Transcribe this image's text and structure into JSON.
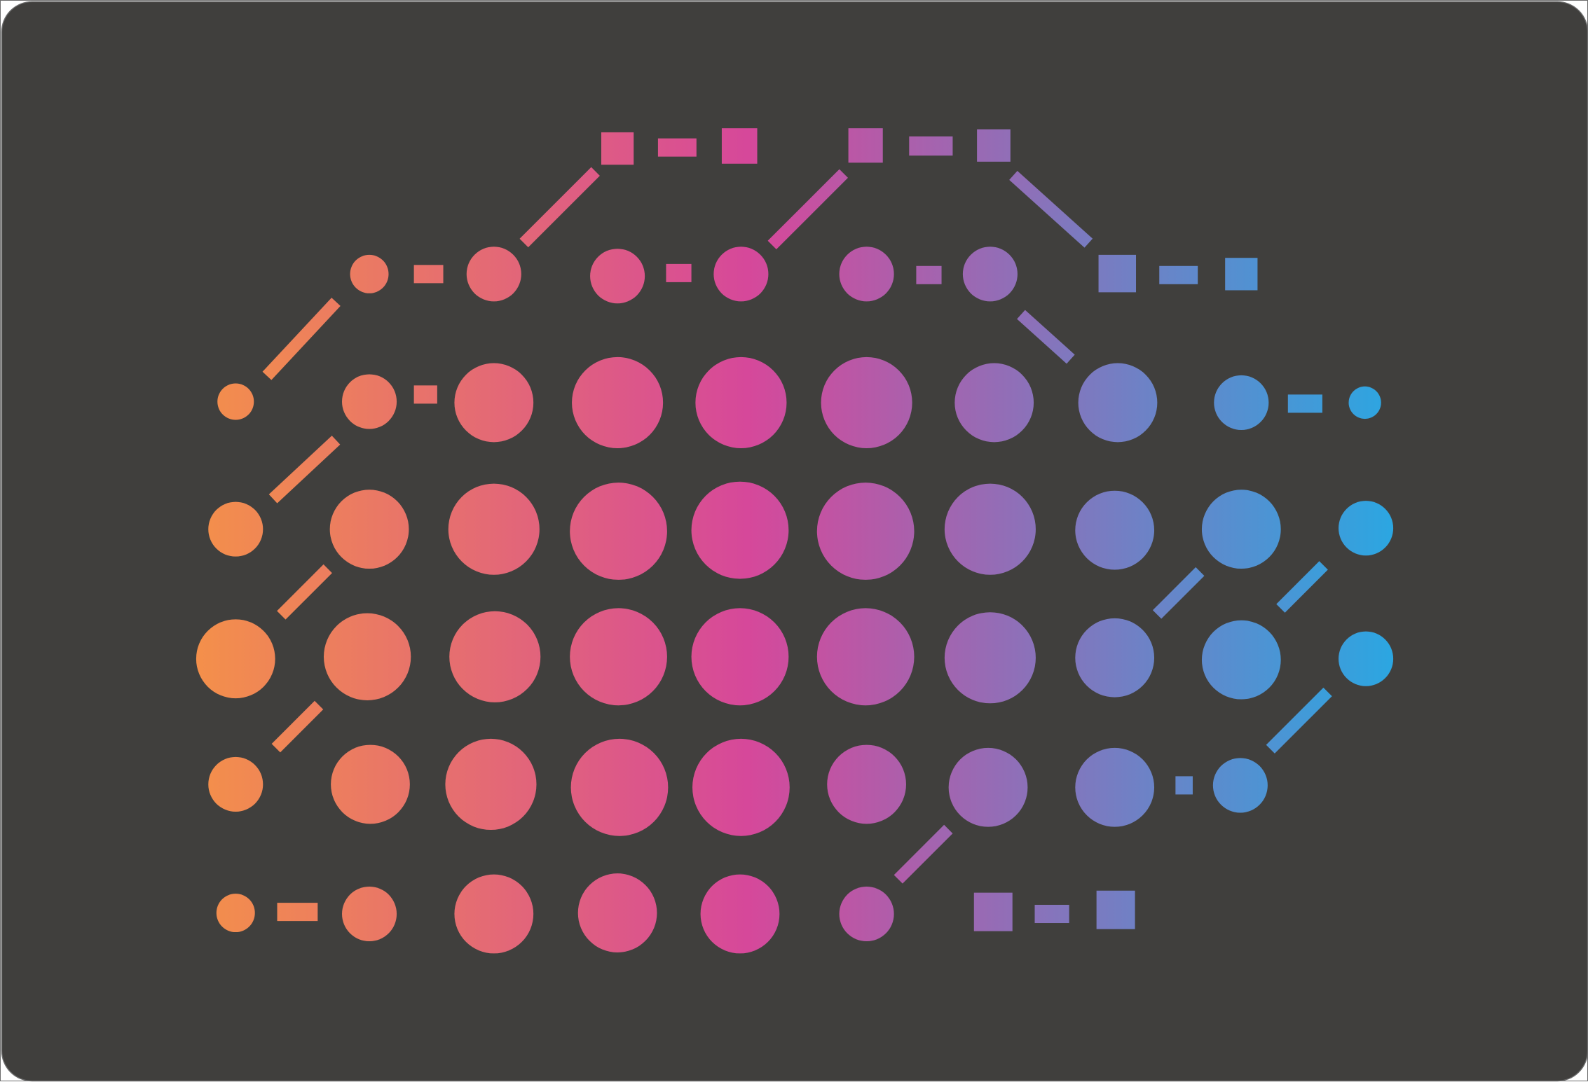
{
  "canvas": {
    "background_color": "#403f3d",
    "border_color": "#6b6b6b"
  },
  "gradient": {
    "start_color": "#f4904a",
    "mid_color": "#d6489a",
    "end_color": "#2aa7e2",
    "direction": "left-to-right"
  },
  "artwork": {
    "description_shapes": [
      "circle-dot",
      "dash-connector",
      "square-node"
    ]
  }
}
